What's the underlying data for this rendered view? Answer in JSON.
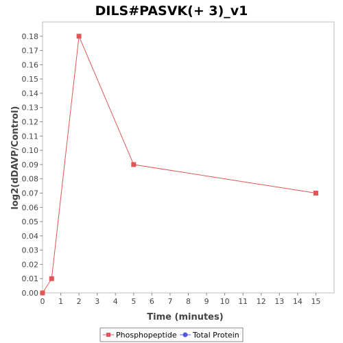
{
  "chart_data": {
    "type": "line",
    "title": "DILS#PASVK(+ 3)_v1",
    "xlabel": "Time (minutes)",
    "ylabel": "log2(dDAVP/Control)",
    "xlim": [
      0,
      16
    ],
    "ylim": [
      0,
      0.19
    ],
    "x_ticks": [
      0,
      1,
      2,
      3,
      4,
      5,
      6,
      7,
      8,
      9,
      10,
      11,
      12,
      13,
      14,
      15
    ],
    "y_ticks": [
      0.0,
      0.01,
      0.02,
      0.03,
      0.04,
      0.05,
      0.06,
      0.07,
      0.08,
      0.09,
      0.1,
      0.11,
      0.12,
      0.13,
      0.14,
      0.15,
      0.16,
      0.17,
      0.18
    ],
    "y_tick_labels": [
      "0.00",
      "0.01",
      "0.02",
      "0.03",
      "0.04",
      "0.05",
      "0.06",
      "0.07",
      "0.08",
      "0.09",
      "0.10",
      "0.11",
      "0.12",
      "0.13",
      "0.14",
      "0.15",
      "0.16",
      "0.17",
      "0.18"
    ],
    "grid": false,
    "legend_position": "bottom-center",
    "series": [
      {
        "name": "Phosphopeptide",
        "color": "#e05555",
        "marker": "square",
        "x": [
          0,
          0.5,
          2,
          5,
          15
        ],
        "y": [
          0.0,
          0.01,
          0.18,
          0.09,
          0.07
        ]
      },
      {
        "name": "Total Protein",
        "color": "#5555e0",
        "marker": "circle",
        "x": [],
        "y": []
      }
    ]
  }
}
